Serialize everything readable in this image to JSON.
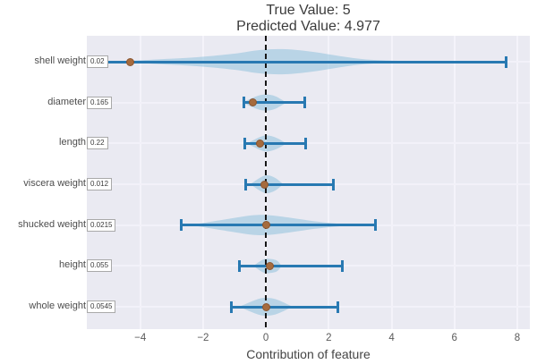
{
  "chart_data": {
    "type": "violin",
    "title_line1": "True Value: 5",
    "title_line2": "Predicted Value: 4.977",
    "xlabel": "Contribution of feature",
    "xlim": [
      -5.7,
      8.4
    ],
    "xticks": [
      -4,
      -2,
      0,
      2,
      4,
      6,
      8
    ],
    "grid": true,
    "legend": "none",
    "zero_reference_line": {
      "x": 0,
      "style": "dashed"
    },
    "features": [
      {
        "name": "shell weight",
        "value_label": "0.02",
        "dot": -4.33,
        "bar_low": -5.05,
        "bar_high": 7.65,
        "violin": [
          [
            -4.8,
            0
          ],
          [
            -3.5,
            2.5
          ],
          [
            -2.2,
            5
          ],
          [
            -1.0,
            9
          ],
          [
            -0.2,
            13
          ],
          [
            0.6,
            14
          ],
          [
            1.5,
            11
          ],
          [
            2.4,
            6
          ],
          [
            3.2,
            2.5
          ],
          [
            4.2,
            1
          ],
          [
            5.2,
            0.4
          ],
          [
            6.2,
            0
          ]
        ]
      },
      {
        "name": "diameter",
        "value_label": "0.165",
        "dot": -0.43,
        "bar_low": -0.71,
        "bar_high": 1.23,
        "violin": [
          [
            -0.75,
            0
          ],
          [
            -0.3,
            7
          ],
          [
            0,
            9
          ],
          [
            0.3,
            7
          ],
          [
            0.65,
            0
          ]
        ]
      },
      {
        "name": "length",
        "value_label": "0.22",
        "dot": -0.2,
        "bar_low": -0.68,
        "bar_high": 1.26,
        "violin": [
          [
            -0.6,
            0
          ],
          [
            -0.2,
            7
          ],
          [
            0.05,
            9
          ],
          [
            0.35,
            6
          ],
          [
            0.65,
            0
          ]
        ]
      },
      {
        "name": "viscera weight",
        "value_label": "0.012",
        "dot": -0.05,
        "bar_low": -0.63,
        "bar_high": 2.14,
        "violin": [
          [
            -0.5,
            0
          ],
          [
            -0.15,
            8
          ],
          [
            0.05,
            10
          ],
          [
            0.3,
            7
          ],
          [
            0.55,
            0
          ]
        ]
      },
      {
        "name": "shucked weight",
        "value_label": "0.0215",
        "dot": 0.0,
        "bar_low": -2.7,
        "bar_high": 3.5,
        "violin": [
          [
            -2.4,
            0
          ],
          [
            -1.7,
            4
          ],
          [
            -1.0,
            8
          ],
          [
            -0.4,
            11
          ],
          [
            0.1,
            11
          ],
          [
            0.8,
            8
          ],
          [
            1.6,
            4
          ],
          [
            2.3,
            1.5
          ],
          [
            2.8,
            0
          ]
        ]
      },
      {
        "name": "height",
        "value_label": "0.055",
        "dot": 0.12,
        "bar_low": -0.83,
        "bar_high": 2.43,
        "violin": [
          [
            -0.4,
            0
          ],
          [
            -0.1,
            7
          ],
          [
            0.1,
            8
          ],
          [
            0.35,
            6
          ],
          [
            0.5,
            0
          ]
        ]
      },
      {
        "name": "whole weight",
        "value_label": "0.0545",
        "dot": 0.0,
        "bar_low": -1.11,
        "bar_high": 2.29,
        "violin": [
          [
            -0.85,
            0
          ],
          [
            -0.3,
            8
          ],
          [
            0,
            10
          ],
          [
            0.35,
            8
          ],
          [
            0.85,
            0
          ]
        ]
      }
    ]
  },
  "colors": {
    "plot_bg": "#eaeaf2",
    "errorbar": "#2879b2",
    "violin_fill": "#8fc1dd",
    "violin_opacity": "0.55",
    "dot_fill": "#a66b3d",
    "dot_border": "#8a5530",
    "zero_line": "#161616"
  }
}
